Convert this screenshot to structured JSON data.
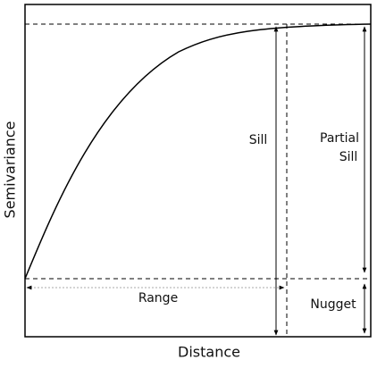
{
  "axes": {
    "x_label": "Distance",
    "y_label": "Semivariance"
  },
  "annotations": {
    "sill": "Sill",
    "partial_sill": [
      "Partial",
      "Sill"
    ],
    "range": "Range",
    "nugget": "Nugget"
  }
}
